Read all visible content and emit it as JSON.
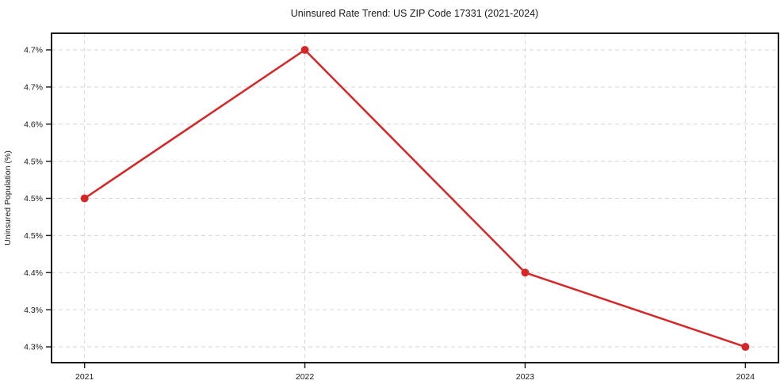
{
  "chart_data": {
    "type": "line",
    "title": "Uninsured Rate Trend: US ZIP Code 17331 (2021-2024)",
    "xlabel": "",
    "ylabel": "Uninsured Population (%)",
    "x": [
      2021,
      2022,
      2023,
      2024
    ],
    "values": [
      4.5,
      4.7,
      4.4,
      4.3
    ],
    "xlim": [
      2020.85,
      2024.15
    ],
    "ylim": [
      4.2787,
      4.7224
    ],
    "xticks": {
      "values": [
        2021,
        2022,
        2023,
        2024
      ],
      "labels": [
        "2021",
        "2022",
        "2023",
        "2024"
      ]
    },
    "yticks": {
      "values": [
        4.7,
        4.65,
        4.6,
        4.55,
        4.5,
        4.45,
        4.4,
        4.35,
        4.3
      ],
      "labels": [
        "4.7%",
        "4.7%",
        "4.6%",
        "4.5%",
        "4.5%",
        "4.5%",
        "4.4%",
        "4.3%",
        "4.3%"
      ]
    },
    "grid": true,
    "grid_style": "dashed",
    "legend": false,
    "marker": "circle",
    "colors": {
      "line": "#d62728",
      "marker": "#d62728",
      "grid": "#d6d6d6",
      "spine": "#000000",
      "tick": "#262626",
      "text": "#1a1a1a",
      "background": "#ffffff"
    }
  }
}
